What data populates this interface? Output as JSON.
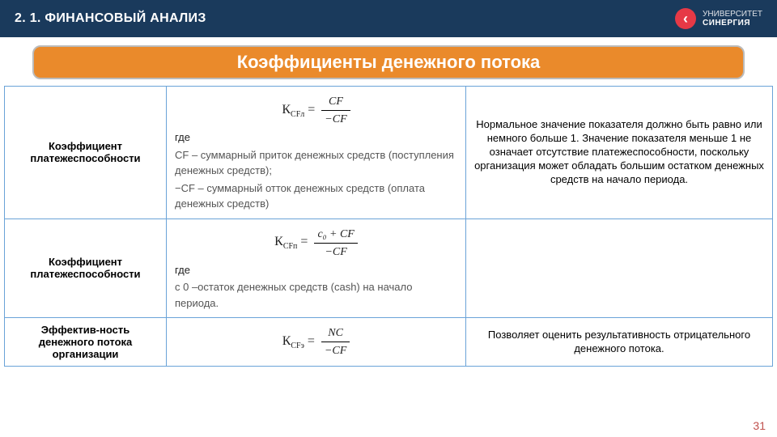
{
  "header": {
    "title": "2. 1. ФИНАНСОВЫЙ АНАЛИЗ",
    "logo_line1": "УНИВЕРСИТЕТ",
    "logo_line2": "СИНЕРГИЯ"
  },
  "banner": "Коэффициенты денежного потока",
  "rows": [
    {
      "name": "Коэффициент платежеспособности",
      "formula_eq_lhs": "К",
      "formula_eq_sub": "CFл",
      "frac_num": "CF",
      "frac_den": "−CF",
      "where_label": "где",
      "where_lines": [
        "CF – суммарный приток денежных средств (поступления денежных средств);",
        "−CF – суммарный отток денежных средств (оплата денежных средств)"
      ],
      "desc": "Нормальное значение показателя должно быть равно или немного больше 1. Значение показателя меньше 1 не означает отсутствие платежеспособности, поскольку организация может обладать большим остатком денежных средств на начало периода."
    },
    {
      "name": "Коэффициент платежеспособности",
      "formula_eq_lhs": "К",
      "formula_eq_sub": "CFп",
      "frac_num": "c₀ + CF",
      "frac_den": "−CF",
      "where_label": "где",
      "where_lines": [
        "с 0 –остаток денежных средств (cash) на начало периода."
      ],
      "desc": ""
    },
    {
      "name": "Эффектив-ность денежного потока организации",
      "formula_eq_lhs": "К",
      "formula_eq_sub": "CFэ",
      "frac_num": "NC",
      "frac_den": "−CF",
      "where_label": "",
      "where_lines": [],
      "desc": "Позволяет оценить результативность отрицательного денежного потока."
    }
  ],
  "page_number": "31",
  "colors": {
    "header_bg": "#1a3a5c",
    "banner_bg": "#ea8a2b",
    "table_border": "#6aa3d8",
    "logo_badge": "#e63946",
    "page_num": "#c0504d"
  }
}
